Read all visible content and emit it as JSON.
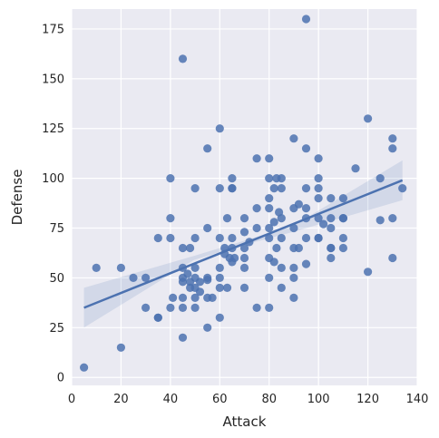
{
  "chart_data": {
    "type": "scatter",
    "title": "",
    "xlabel": "Attack",
    "ylabel": "Defense",
    "xlim": [
      0,
      140
    ],
    "ylim": [
      -4,
      185
    ],
    "xticks": [
      0,
      20,
      40,
      60,
      80,
      100,
      120,
      140
    ],
    "yticks": [
      0,
      25,
      50,
      75,
      100,
      125,
      150,
      175
    ],
    "grid": true,
    "background": "#eaeaf2",
    "grid_color": "#ffffff",
    "point_color": "#4c72b0",
    "regression": {
      "x": [
        5,
        134
      ],
      "y": [
        35,
        99
      ],
      "ci_lower": [
        25,
        89
      ],
      "ci_upper": [
        45,
        109
      ],
      "ci_mid": [
        55,
        63,
        71
      ],
      "ci_mid_lower": [
        59,
        66.5,
        73
      ],
      "ci_mid_upper": [
        61,
        68.5,
        76
      ]
    },
    "points": [
      [
        5,
        5
      ],
      [
        10,
        55
      ],
      [
        20,
        55
      ],
      [
        20,
        15
      ],
      [
        25,
        50
      ],
      [
        30,
        50
      ],
      [
        30,
        35
      ],
      [
        35,
        30
      ],
      [
        35,
        30
      ],
      [
        35,
        70
      ],
      [
        40,
        70
      ],
      [
        40,
        80
      ],
      [
        40,
        100
      ],
      [
        40,
        35
      ],
      [
        41,
        40
      ],
      [
        45,
        160
      ],
      [
        45,
        65
      ],
      [
        45,
        55
      ],
      [
        45,
        50
      ],
      [
        45,
        48
      ],
      [
        45,
        40
      ],
      [
        45,
        35
      ],
      [
        45,
        20
      ],
      [
        47,
        52
      ],
      [
        48,
        48
      ],
      [
        48,
        45
      ],
      [
        48,
        65
      ],
      [
        50,
        95
      ],
      [
        50,
        70
      ],
      [
        50,
        55
      ],
      [
        50,
        50
      ],
      [
        50,
        45
      ],
      [
        50,
        40
      ],
      [
        50,
        35
      ],
      [
        52,
        48
      ],
      [
        52,
        43
      ],
      [
        55,
        115
      ],
      [
        55,
        75
      ],
      [
        55,
        50
      ],
      [
        55,
        49
      ],
      [
        55,
        40
      ],
      [
        55,
        25
      ],
      [
        57,
        40
      ],
      [
        60,
        125
      ],
      [
        60,
        95
      ],
      [
        60,
        70
      ],
      [
        60,
        55
      ],
      [
        60,
        50
      ],
      [
        60,
        45
      ],
      [
        60,
        30
      ],
      [
        62,
        65
      ],
      [
        62,
        62
      ],
      [
        63,
        80
      ],
      [
        63,
        45
      ],
      [
        64,
        60
      ],
      [
        65,
        100
      ],
      [
        65,
        95
      ],
      [
        65,
        95
      ],
      [
        65,
        70
      ],
      [
        65,
        65
      ],
      [
        65,
        58
      ],
      [
        66,
        60
      ],
      [
        70,
        80
      ],
      [
        70,
        73
      ],
      [
        70,
        65
      ],
      [
        70,
        60
      ],
      [
        70,
        55
      ],
      [
        70,
        45
      ],
      [
        72,
        68
      ],
      [
        75,
        110
      ],
      [
        75,
        85
      ],
      [
        75,
        75
      ],
      [
        75,
        35
      ],
      [
        80,
        110
      ],
      [
        80,
        100
      ],
      [
        80,
        90
      ],
      [
        80,
        85
      ],
      [
        80,
        75
      ],
      [
        80,
        70
      ],
      [
        80,
        60
      ],
      [
        80,
        50
      ],
      [
        80,
        35
      ],
      [
        82,
        95
      ],
      [
        82,
        78
      ],
      [
        82,
        58
      ],
      [
        83,
        100
      ],
      [
        83,
        65
      ],
      [
        84,
        83
      ],
      [
        85,
        100
      ],
      [
        85,
        95
      ],
      [
        85,
        80
      ],
      [
        85,
        70
      ],
      [
        85,
        55
      ],
      [
        85,
        45
      ],
      [
        90,
        120
      ],
      [
        90,
        85
      ],
      [
        90,
        75
      ],
      [
        90,
        65
      ],
      [
        90,
        55
      ],
      [
        90,
        50
      ],
      [
        90,
        40
      ],
      [
        92,
        87
      ],
      [
        92,
        65
      ],
      [
        95,
        180
      ],
      [
        95,
        115
      ],
      [
        95,
        95
      ],
      [
        95,
        85
      ],
      [
        95,
        80
      ],
      [
        95,
        70
      ],
      [
        95,
        57
      ],
      [
        100,
        110
      ],
      [
        100,
        100
      ],
      [
        100,
        95
      ],
      [
        100,
        90
      ],
      [
        100,
        80
      ],
      [
        100,
        70
      ],
      [
        100,
        70
      ],
      [
        102,
        77
      ],
      [
        105,
        90
      ],
      [
        105,
        80
      ],
      [
        105,
        75
      ],
      [
        105,
        65
      ],
      [
        105,
        65
      ],
      [
        105,
        60
      ],
      [
        110,
        90
      ],
      [
        110,
        80
      ],
      [
        110,
        80
      ],
      [
        110,
        70
      ],
      [
        110,
        65
      ],
      [
        115,
        105
      ],
      [
        120,
        130
      ],
      [
        120,
        53
      ],
      [
        125,
        100
      ],
      [
        125,
        79
      ],
      [
        130,
        120
      ],
      [
        130,
        115
      ],
      [
        130,
        80
      ],
      [
        130,
        60
      ],
      [
        134,
        95
      ]
    ]
  }
}
